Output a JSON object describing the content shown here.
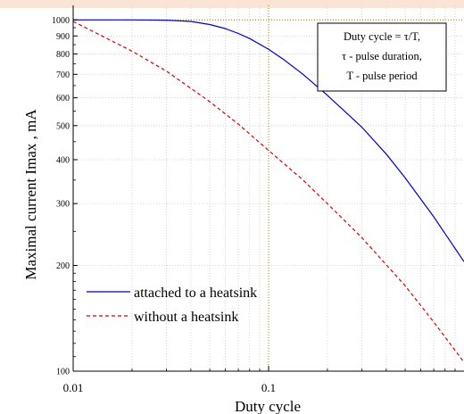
{
  "chart_data": {
    "type": "line",
    "title": "",
    "xlabel": "Duty cycle",
    "ylabel": "Maximal current  Imax , mA",
    "x_scale": "log",
    "y_scale": "log",
    "xlim": [
      0.01,
      1
    ],
    "ylim": [
      100,
      1100
    ],
    "x_ticks": [
      {
        "value": 0.01,
        "label": "0.01"
      },
      {
        "value": 0.1,
        "label": "0.1"
      }
    ],
    "y_ticks": [
      {
        "value": 100,
        "label": "100"
      },
      {
        "value": 200,
        "label": "200"
      },
      {
        "value": 300,
        "label": "300"
      },
      {
        "value": 400,
        "label": "400"
      },
      {
        "value": 500,
        "label": "500"
      },
      {
        "value": 600,
        "label": "600"
      },
      {
        "value": 700,
        "label": "700"
      },
      {
        "value": 800,
        "label": "800"
      },
      {
        "value": 900,
        "label": "900"
      },
      {
        "value": 1000,
        "label": "1000"
      }
    ],
    "grid": true,
    "legend_position": "lower-left",
    "series": [
      {
        "name": "attached to a heatsink",
        "color": "#0000cc",
        "style": "solid",
        "x": [
          0.01,
          0.02,
          0.03,
          0.04,
          0.05,
          0.06,
          0.07,
          0.08,
          0.1,
          0.12,
          0.15,
          0.2,
          0.3,
          0.4,
          0.5,
          0.7,
          1.0
        ],
        "y": [
          1000,
          1000,
          998,
          990,
          970,
          945,
          915,
          885,
          825,
          770,
          700,
          610,
          495,
          415,
          355,
          275,
          205
        ]
      },
      {
        "name": "without a heatsink",
        "color": "#dd0000",
        "style": "dashed",
        "x": [
          0.01,
          0.02,
          0.03,
          0.05,
          0.07,
          0.1,
          0.15,
          0.2,
          0.3,
          0.5,
          0.7,
          1.0
        ],
        "y": [
          990,
          815,
          715,
          585,
          505,
          425,
          350,
          300,
          240,
          175,
          138,
          106
        ]
      }
    ],
    "annotation": {
      "lines": [
        "Duty cycle = τ/T,",
        "τ - pulse duration,",
        "T - pulse period"
      ]
    },
    "reference_lines": [
      {
        "axis": "y",
        "value": 1000,
        "color": "#a08000",
        "style": "dotted"
      },
      {
        "axis": "x",
        "value": 0.1,
        "color": "#a08000",
        "style": "dotted"
      }
    ]
  }
}
